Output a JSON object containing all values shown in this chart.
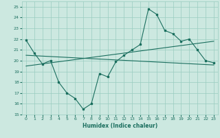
{
  "title": "",
  "xlabel": "Humidex (Indice chaleur)",
  "xlim": [
    -0.5,
    23.5
  ],
  "ylim": [
    15,
    25.5
  ],
  "yticks": [
    15,
    16,
    17,
    18,
    19,
    20,
    21,
    22,
    23,
    24,
    25
  ],
  "xticks": [
    0,
    1,
    2,
    3,
    4,
    5,
    6,
    7,
    8,
    9,
    10,
    11,
    12,
    13,
    14,
    15,
    16,
    17,
    18,
    19,
    20,
    21,
    22,
    23
  ],
  "background_color": "#cce8e0",
  "grid_color": "#99ccc0",
  "line_color": "#1a6e5e",
  "main_line_x": [
    0,
    1,
    2,
    3,
    4,
    5,
    6,
    7,
    8,
    9,
    10,
    11,
    12,
    13,
    14,
    15,
    16,
    17,
    18,
    19,
    20,
    21,
    22,
    23
  ],
  "main_line_y": [
    21.9,
    20.7,
    19.7,
    20.0,
    18.0,
    17.0,
    16.5,
    15.5,
    16.0,
    18.8,
    18.5,
    19.9,
    20.5,
    21.0,
    21.5,
    24.8,
    24.3,
    22.8,
    22.5,
    21.8,
    22.0,
    21.0,
    20.0,
    19.8
  ],
  "trend1_x": [
    0,
    23
  ],
  "trend1_y": [
    19.5,
    21.8
  ],
  "trend2_x": [
    0,
    23
  ],
  "trend2_y": [
    20.5,
    19.6
  ]
}
